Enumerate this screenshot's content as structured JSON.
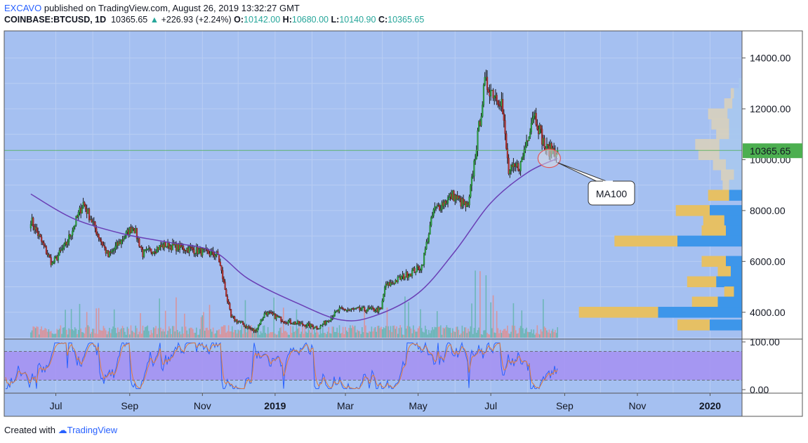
{
  "header": {
    "author": "EXCAVO",
    "published": "published on TradingView.com, August 26, 2019 13:32:27 GMT",
    "symbol": "COINBASE:BTCUSD, 1D",
    "last": "10365.65",
    "change": "+226.93 (+2.24%)",
    "o_label": "O:",
    "o_value": "10142.00",
    "h_label": "H:",
    "h_value": "10680.00",
    "l_label": "L:",
    "l_value": "10140.90",
    "c_label": "C:",
    "c_value": "10365.65"
  },
  "footer": {
    "created_with": "Created with",
    "brand": "TradingView"
  },
  "colors": {
    "background": "#a5c0f1",
    "up": "#26a69a",
    "down": "#ef5350",
    "ma": "#6a3fb5",
    "price_line": "#4caf50",
    "stoch_band": "#a58ff2",
    "vp_up": "#3d96ea",
    "vp_down": "#e6c064",
    "vp_va_up": "#a9c8ee",
    "vp_va_down": "#d8d0bd"
  },
  "chart_data": {
    "type": "candlestick",
    "timeframe": "1D",
    "price_axis": {
      "ticks": [
        "14000.00",
        "12000.00",
        "10000.00",
        "8000.00",
        "6000.00",
        "4000.00"
      ],
      "ylim": [
        3000,
        14500
      ]
    },
    "time_axis": {
      "ticks": [
        "Jul",
        "Sep",
        "Nov",
        "2019",
        "Mar",
        "May",
        "Jul",
        "Sep",
        "Nov",
        "2020"
      ]
    },
    "last_price_label": "10365.65",
    "ma_label": "MA100",
    "stoch_axis": {
      "ticks": [
        "100.00",
        "0.00"
      ],
      "bands": [
        80,
        20
      ]
    },
    "price_path": [
      {
        "date": "2018-06-10",
        "price": 7650
      },
      {
        "date": "2018-06-28",
        "price": 5900
      },
      {
        "date": "2018-07-10",
        "price": 6700
      },
      {
        "date": "2018-07-24",
        "price": 8300
      },
      {
        "date": "2018-08-14",
        "price": 6200
      },
      {
        "date": "2018-09-04",
        "price": 7400
      },
      {
        "date": "2018-09-12",
        "price": 6300
      },
      {
        "date": "2018-10-01",
        "price": 6650
      },
      {
        "date": "2018-10-20",
        "price": 6500
      },
      {
        "date": "2018-11-14",
        "price": 6250
      },
      {
        "date": "2018-11-25",
        "price": 3800
      },
      {
        "date": "2018-12-15",
        "price": 3250
      },
      {
        "date": "2018-12-24",
        "price": 4000
      },
      {
        "date": "2019-01-10",
        "price": 3650
      },
      {
        "date": "2019-02-07",
        "price": 3400
      },
      {
        "date": "2019-02-24",
        "price": 4100
      },
      {
        "date": "2019-03-31",
        "price": 4100
      },
      {
        "date": "2019-04-03",
        "price": 5000
      },
      {
        "date": "2019-05-04",
        "price": 5800
      },
      {
        "date": "2019-05-14",
        "price": 8000
      },
      {
        "date": "2019-05-30",
        "price": 8600
      },
      {
        "date": "2019-06-12",
        "price": 8100
      },
      {
        "date": "2019-06-26",
        "price": 13000
      },
      {
        "date": "2019-07-10",
        "price": 12300
      },
      {
        "date": "2019-07-16",
        "price": 9500
      },
      {
        "date": "2019-07-26",
        "price": 9800
      },
      {
        "date": "2019-08-06",
        "price": 11900
      },
      {
        "date": "2019-08-16",
        "price": 10400
      },
      {
        "date": "2019-08-26",
        "price": 10365.65
      }
    ],
    "ma100": [
      {
        "date": "2018-06-10",
        "price": 8650
      },
      {
        "date": "2018-07-15",
        "price": 7700
      },
      {
        "date": "2018-08-25",
        "price": 7100
      },
      {
        "date": "2018-10-01",
        "price": 6770
      },
      {
        "date": "2018-11-10",
        "price": 6400
      },
      {
        "date": "2018-12-10",
        "price": 5300
      },
      {
        "date": "2019-01-20",
        "price": 4350
      },
      {
        "date": "2019-02-25",
        "price": 3700
      },
      {
        "date": "2019-03-25",
        "price": 3850
      },
      {
        "date": "2019-05-01",
        "price": 4750
      },
      {
        "date": "2019-06-01",
        "price": 6400
      },
      {
        "date": "2019-07-01",
        "price": 8300
      },
      {
        "date": "2019-08-01",
        "price": 9500
      },
      {
        "date": "2019-08-26",
        "price": 10050
      }
    ],
    "volume_profile": [
      {
        "price": 13000,
        "up": 0.02,
        "down": 0.0
      },
      {
        "price": 12600,
        "up": 0.05,
        "down": 0.02
      },
      {
        "price": 12200,
        "up": 0.06,
        "down": 0.05
      },
      {
        "price": 11800,
        "up": 0.09,
        "down": 0.12
      },
      {
        "price": 11400,
        "up": 0.08,
        "down": 0.11
      },
      {
        "price": 11000,
        "up": 0.08,
        "down": 0.08
      },
      {
        "price": 10600,
        "up": 0.14,
        "down": 0.15
      },
      {
        "price": 10200,
        "up": 0.14,
        "down": 0.13
      },
      {
        "price": 9800,
        "up": 0.1,
        "down": 0.08
      },
      {
        "price": 9400,
        "up": 0.05,
        "down": 0.08
      },
      {
        "price": 9000,
        "up": 0.08,
        "down": 0.04
      },
      {
        "price": 8600,
        "up": 0.08,
        "down": 0.13
      },
      {
        "price": 8000,
        "up": 0.2,
        "down": 0.21
      },
      {
        "price": 7600,
        "up": 0.11,
        "down": 0.13
      },
      {
        "price": 7200,
        "up": 0.1,
        "down": 0.15
      },
      {
        "price": 6800,
        "up": 0.4,
        "down": 0.39
      },
      {
        "price": 6000,
        "up": 0.1,
        "down": 0.15
      },
      {
        "price": 5600,
        "up": 0.07,
        "down": 0.08
      },
      {
        "price": 5200,
        "up": 0.16,
        "down": 0.18
      },
      {
        "price": 4800,
        "up": 0.05,
        "down": 0.06
      },
      {
        "price": 4400,
        "up": 0.15,
        "down": 0.16
      },
      {
        "price": 4000,
        "up": 0.52,
        "down": 0.49
      },
      {
        "price": 3500,
        "up": 0.2,
        "down": 0.2
      }
    ]
  }
}
